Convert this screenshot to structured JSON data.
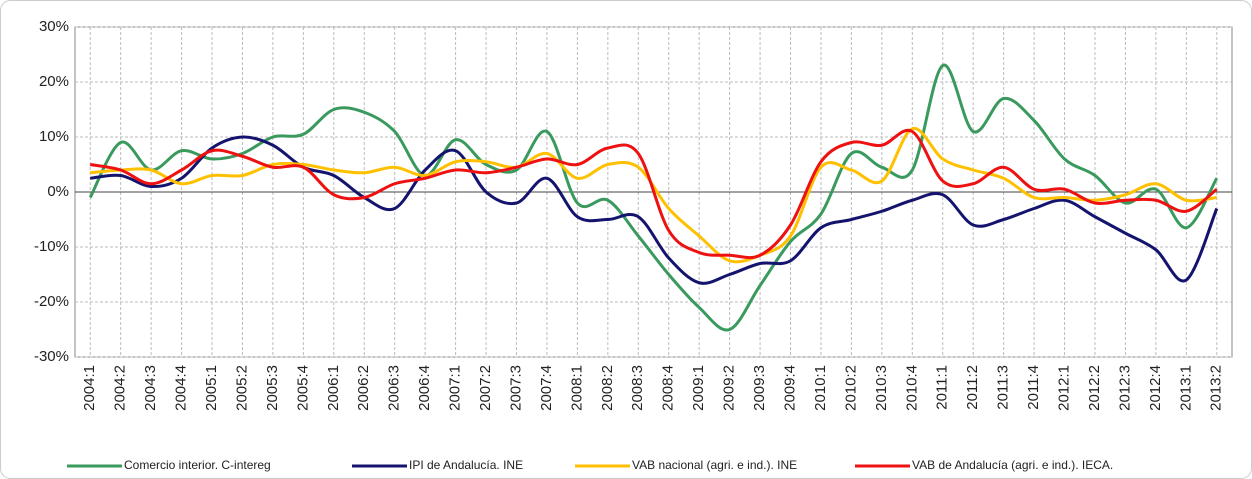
{
  "chart_data": {
    "type": "line",
    "categories": [
      "2004:1",
      "2004:2",
      "2004:3",
      "2004:4",
      "2005:1",
      "2005:2",
      "2005:3",
      "2005:4",
      "2006:1",
      "2006:2",
      "2006:3",
      "2006:4",
      "2007:1",
      "2007:2",
      "2007:3",
      "2007:4",
      "2008:1",
      "2008:2",
      "2008:3",
      "2008:4",
      "2009:1",
      "2009:2",
      "2009:3",
      "2009:4",
      "2010:1",
      "2010:2",
      "2010:3",
      "2010:4",
      "2011:1",
      "2011:2",
      "2011:3",
      "2011:4",
      "2012:1",
      "2012:2",
      "2012:3",
      "2012:4",
      "2013:1",
      "2013:2"
    ],
    "series": [
      {
        "name": "Comercio interior. C-intereg",
        "color": "#3a9a5e",
        "values": [
          -1,
          9,
          4,
          7.5,
          6,
          7,
          10,
          10.5,
          15,
          14.5,
          11,
          3,
          9.5,
          5,
          4,
          11,
          -2,
          -1.5,
          -8,
          -15,
          -21,
          -25,
          -17,
          -9,
          -4,
          7,
          4.5,
          4,
          23,
          11,
          17,
          13,
          6,
          3,
          -2,
          0.5,
          -6.5,
          2.5
        ]
      },
      {
        "name": "IPI de Andalucía. INE",
        "color": "#14146e",
        "values": [
          2.5,
          3,
          1,
          2.5,
          8,
          10,
          8.5,
          4.5,
          3,
          -1,
          -3,
          4,
          7.5,
          0,
          -2,
          2.5,
          -4.5,
          -5,
          -4.5,
          -12,
          -16.5,
          -15,
          -13,
          -12.5,
          -6.5,
          -5,
          -3.5,
          -1.5,
          -0.5,
          -6,
          -5,
          -3,
          -1.5,
          -4.5,
          -7.5,
          -10.5,
          -16,
          -3
        ]
      },
      {
        "name": "VAB nacional (agri. e ind.). INE",
        "color": "#ffc000",
        "values": [
          3.5,
          4,
          4,
          1.5,
          3,
          3,
          5,
          5,
          4,
          3.5,
          4.5,
          3,
          5.5,
          5.5,
          4.5,
          7,
          2.5,
          5,
          4.5,
          -3,
          -8,
          -12.5,
          -11.5,
          -8,
          4.5,
          4,
          2,
          11.5,
          6,
          4,
          2.5,
          -1,
          -1,
          -1.5,
          -0.5,
          1.5,
          -1.5,
          -1
        ]
      },
      {
        "name": "VAB de Andalucía (agri. e ind.). IECA.",
        "color": "#ee1111",
        "values": [
          5,
          4,
          1.5,
          4,
          7.5,
          6.5,
          4.5,
          4.5,
          -0.5,
          -1,
          1.5,
          2.5,
          4,
          3.5,
          4.5,
          6,
          5,
          8,
          7,
          -7,
          -11,
          -11.5,
          -11.5,
          -6,
          5.5,
          9,
          8.5,
          11,
          2,
          1.5,
          4.5,
          0.5,
          0.5,
          -2,
          -1.5,
          -1.5,
          -3.5,
          0.5
        ]
      }
    ],
    "ylim": [
      -30,
      30
    ],
    "yticks": [
      {
        "value": -30,
        "label": "-30%"
      },
      {
        "value": -20,
        "label": "-20%"
      },
      {
        "value": -10,
        "label": "-10%"
      },
      {
        "value": 0,
        "label": "0%"
      },
      {
        "value": 10,
        "label": "10%"
      },
      {
        "value": 20,
        "label": "20%"
      },
      {
        "value": 30,
        "label": "30%"
      }
    ],
    "grid": true
  }
}
